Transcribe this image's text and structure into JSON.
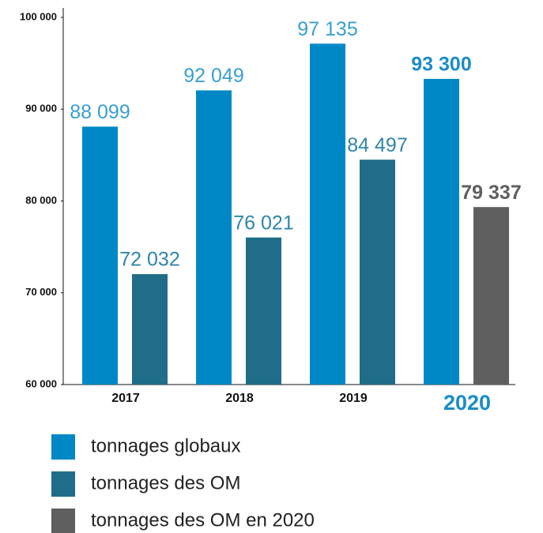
{
  "chart_data": {
    "type": "bar",
    "categories": [
      "2017",
      "2018",
      "2019",
      "2020"
    ],
    "series": [
      {
        "name": "tonnages globaux",
        "color": "#0088c6",
        "values": [
          88099,
          92049,
          97135,
          93300
        ],
        "value_labels": [
          "88 099",
          "92 049",
          "97 135",
          "93 300"
        ]
      },
      {
        "name": "tonnages des OM",
        "color": "#1f6d88",
        "values": [
          72032,
          76021,
          84497,
          null
        ],
        "value_labels": [
          "72 032",
          "76 021",
          "84 497",
          null
        ]
      },
      {
        "name": "tonnages des OM en 2020",
        "color": "#5f5f5f",
        "values": [
          null,
          null,
          null,
          79337
        ],
        "value_labels": [
          null,
          null,
          null,
          "79 337"
        ]
      }
    ],
    "ylim": [
      60000,
      100000
    ],
    "yticks": [
      {
        "value": 60000,
        "label": "60 000"
      },
      {
        "value": 70000,
        "label": "70 000"
      },
      {
        "value": 80000,
        "label": "80 000"
      },
      {
        "value": 90000,
        "label": "90 000"
      },
      {
        "value": 100000,
        "label": "100 000"
      }
    ]
  }
}
